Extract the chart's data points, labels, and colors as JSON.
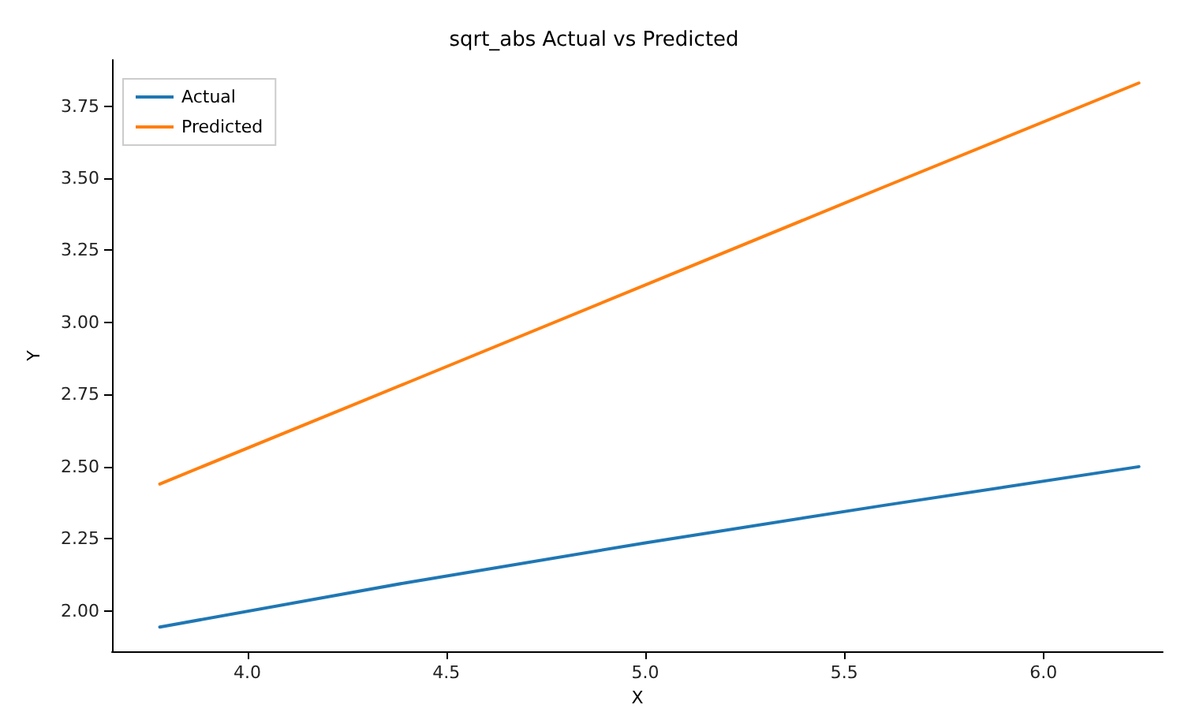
{
  "chart_data": {
    "type": "line",
    "title": "sqrt_abs Actual vs Predicted",
    "xlabel": "X",
    "ylabel": "Y",
    "x": [
      3.78,
      4.4,
      5.0,
      5.6,
      6.24
    ],
    "series": [
      {
        "name": "Actual",
        "color": "#1f77b4",
        "values": [
          1.944,
          2.098,
          2.236,
          2.366,
          2.5
        ]
      },
      {
        "name": "Predicted",
        "color": "#ff7f0e",
        "values": [
          2.44,
          2.79,
          3.13,
          3.47,
          3.83
        ]
      }
    ],
    "xlim": [
      3.66,
      6.3
    ],
    "ylim": [
      1.86,
      3.91
    ],
    "xticks": [
      {
        "value": 4,
        "label": "4.0"
      },
      {
        "value": 4.5,
        "label": "4.5"
      },
      {
        "value": 5,
        "label": "5.0"
      },
      {
        "value": 5.5,
        "label": "5.5"
      },
      {
        "value": 6,
        "label": "6.0"
      }
    ],
    "yticks": [
      {
        "value": 2,
        "label": "2.00"
      },
      {
        "value": 2.25,
        "label": "2.25"
      },
      {
        "value": 2.5,
        "label": "2.50"
      },
      {
        "value": 2.75,
        "label": "2.75"
      },
      {
        "value": 3,
        "label": "3.00"
      },
      {
        "value": 3.25,
        "label": "3.25"
      },
      {
        "value": 3.5,
        "label": "3.50"
      },
      {
        "value": 3.75,
        "label": "3.75"
      }
    ],
    "grid": false,
    "legend": "top left",
    "marker": "none",
    "line_style": "solid"
  }
}
